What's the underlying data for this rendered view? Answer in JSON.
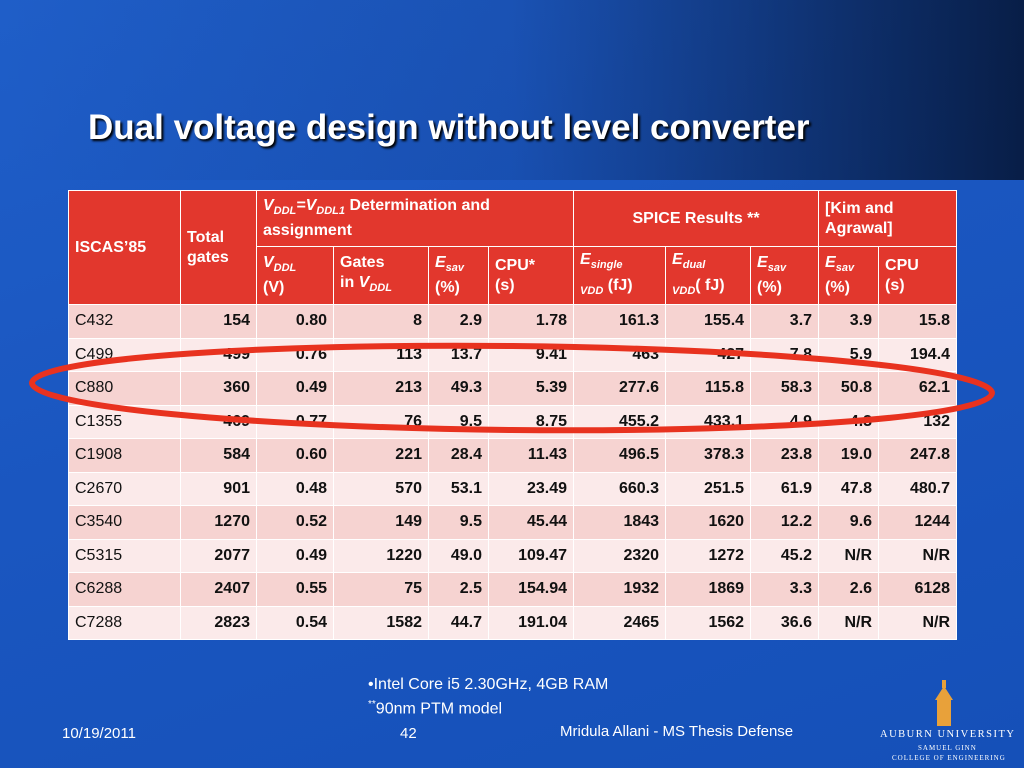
{
  "title": "Dual voltage design without level converter",
  "header": {
    "row1": [
      [
        "ISCAS’85"
      ],
      [
        "Total gates"
      ],
      [
        "V",
        "DDL",
        "=V",
        "DDL1",
        " Determination and assignment"
      ],
      [
        "SPICE Results **"
      ],
      [
        "[Kim and Agrawal]"
      ]
    ],
    "row2": [
      [
        "V",
        "DDL",
        "(V)"
      ],
      [
        "Gates",
        "in ",
        "V",
        "DDL"
      ],
      [
        "E",
        "sav",
        "(%)"
      ],
      [
        "CPU*",
        "(s)"
      ],
      [
        "E",
        "single",
        "VDD",
        "(fJ)"
      ],
      [
        "E",
        "dual",
        "VDD",
        "( fJ)"
      ],
      [
        "E",
        "sav",
        "(%)"
      ],
      [
        "E",
        "sav",
        "(%)"
      ],
      [
        "CPU",
        "(s)"
      ]
    ]
  },
  "table": {
    "rows": [
      [
        "C432",
        "154",
        "0.80",
        "8",
        "2.9",
        "1.78",
        "161.3",
        "155.4",
        "3.7",
        "3.9",
        "15.8"
      ],
      [
        "C499",
        "499",
        "0.76",
        "113",
        "13.7",
        "9.41",
        "463",
        "427",
        "7.8",
        "5.9",
        "194.4"
      ],
      [
        "C880",
        "360",
        "0.49",
        "213",
        "49.3",
        "5.39",
        "277.6",
        "115.8",
        "58.3",
        "50.8",
        "62.1"
      ],
      [
        "C1355",
        "469",
        "0.77",
        "76",
        "9.5",
        "8.75",
        "455.2",
        "433.1",
        "4.9",
        "4.3",
        "132"
      ],
      [
        "C1908",
        "584",
        "0.60",
        "221",
        "28.4",
        "11.43",
        "496.5",
        "378.3",
        "23.8",
        "19.0",
        "247.8"
      ],
      [
        "C2670",
        "901",
        "0.48",
        "570",
        "53.1",
        "23.49",
        "660.3",
        "251.5",
        "61.9",
        "47.8",
        "480.7"
      ],
      [
        "C3540",
        "1270",
        "0.52",
        "149",
        "9.5",
        "45.44",
        "1843",
        "1620",
        "12.2",
        "9.6",
        "1244"
      ],
      [
        "C5315",
        "2077",
        "0.49",
        "1220",
        "49.0",
        "109.47",
        "2320",
        "1272",
        "45.2",
        "N/R",
        "N/R"
      ],
      [
        "C6288",
        "2407",
        "0.55",
        "75",
        "2.5",
        "154.94",
        "1932",
        "1869",
        "3.3",
        "2.6",
        "6128"
      ],
      [
        "C7288",
        "2823",
        "0.54",
        "1582",
        "44.7",
        "191.04",
        "2465",
        "1562",
        "36.6",
        "N/R",
        "N/R"
      ]
    ]
  },
  "notes": {
    "line1": "•Intel Core i5 2.30GHz, 4GB RAM",
    "line2_mark": "**",
    "line2": "90nm PTM model"
  },
  "footer": {
    "date": "10/19/2011",
    "page": "42",
    "author": "Mridula Allani - MS Thesis Defense",
    "logo1": "AUBURN UNIVERSITY",
    "logo2": "SAMUEL GINN",
    "logo3": "COLLEGE OF ENGINEERING"
  }
}
